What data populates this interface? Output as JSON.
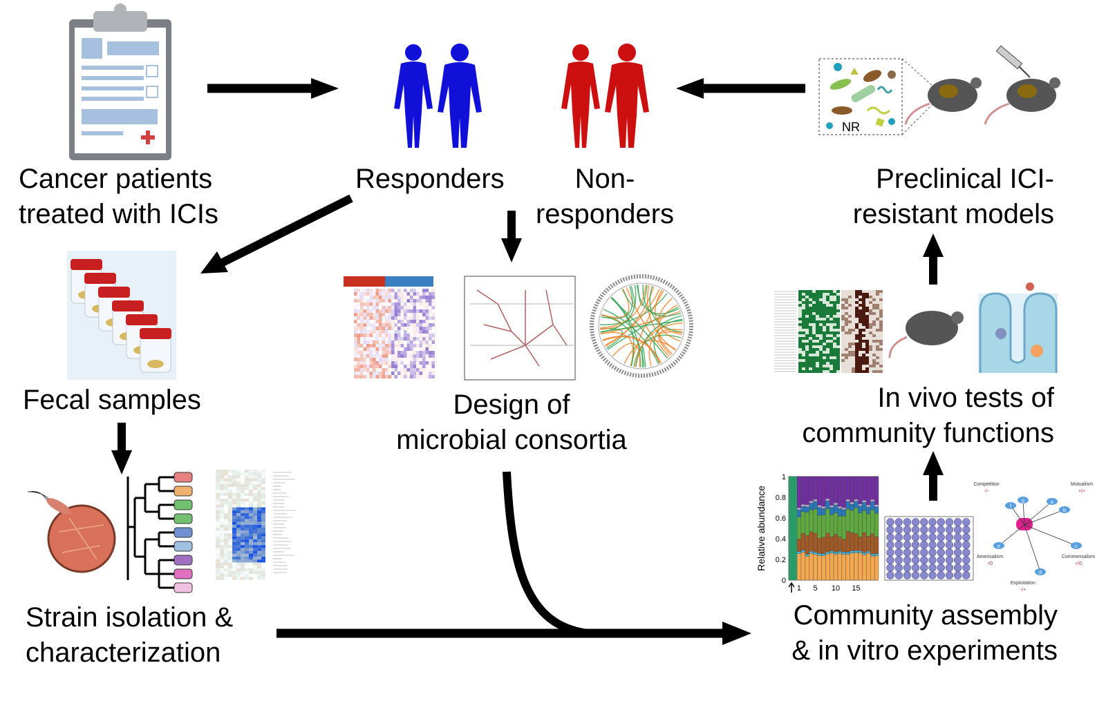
{
  "labels": {
    "patients": [
      "Cancer patients",
      "treated with ICIs"
    ],
    "responders": "Responders",
    "non_responders": [
      "Non-",
      "responders"
    ],
    "preclinical": [
      "Preclinical ICI-",
      "resistant models"
    ],
    "fecal": "Fecal samples",
    "design": [
      "Design of",
      "microbial consortia"
    ],
    "in_vivo": [
      "In vivo tests of",
      "community functions"
    ],
    "strain": [
      "Strain isolation &",
      "characterization"
    ],
    "community": [
      "Community assembly",
      "& in vitro experiments"
    ]
  },
  "nr_box_label": "NR",
  "abundance_plot": {
    "ylabel": "Relative abundance",
    "yticks": [
      "0",
      "0.2",
      "0.4",
      "0.6",
      "0.8",
      "1"
    ],
    "xticks": [
      "1",
      "5",
      "10",
      "15"
    ]
  },
  "interactions": {
    "competition": {
      "name": "Competition",
      "sign": "-/-"
    },
    "mutualism": {
      "name": "Mutualism",
      "sign": "+/+"
    },
    "amensalism": {
      "name": "Amensalism",
      "sign": "-/0"
    },
    "commensalism": {
      "name": "Commensalism",
      "sign": "+/0"
    },
    "exploitation": {
      "name": "Exploitation",
      "sign": "-/+"
    },
    "nodes": [
      "a",
      "b",
      "c",
      "d",
      "e",
      "f",
      "g"
    ]
  },
  "colors": {
    "responder": "#1010d8",
    "non_responder": "#cc1010",
    "arrow": "#000000"
  }
}
